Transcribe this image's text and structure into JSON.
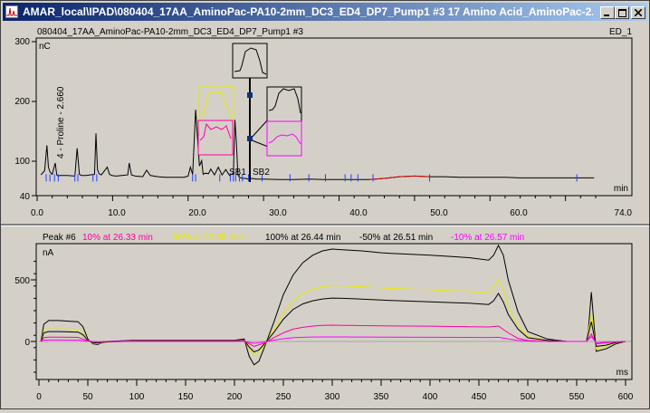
{
  "window": {
    "title": "AMAR_local\\IPAD\\080404_17AA_AminoPac-PA10-2mm_DC3_ED4_DP7_Pump1 #3 17 Amino Acid_AminoPac-2..."
  },
  "top_panel": {
    "sample_title": "080404_17AA_AminoPac-PA10-2mm_DC3_ED4_DP7_Pump1 #3",
    "channel": "ED_1",
    "y_unit": "nC",
    "x_unit": "min",
    "y_ticks": [
      "300",
      "200",
      "100",
      "40"
    ],
    "x_ticks": [
      "0.0",
      "10.0",
      "20.0",
      "30.0",
      "40.0",
      "50.0",
      "60.0",
      "74.0"
    ],
    "peak_label": "4 - Proline - 2.660",
    "sb_label_1": "SB1",
    "sb_label_2": "SB2"
  },
  "bottom_panel": {
    "peak_header": "Peak #6",
    "legend": [
      {
        "text": "10% at 26.33 min",
        "color": "#ff00a0"
      },
      {
        "text": "50% at 26.38 min",
        "color": "#e8e800"
      },
      {
        "text": "100% at 26.44 min",
        "color": "#000000"
      },
      {
        "text": "-50% at 26.51 min",
        "color": "#000000"
      },
      {
        "text": "-10% at 26.57 min",
        "color": "#ff00ff"
      }
    ],
    "y_unit": "nA",
    "x_unit": "ms",
    "y_ticks": [
      "500",
      "0"
    ],
    "x_ticks": [
      "0",
      "50",
      "100",
      "150",
      "200",
      "250",
      "300",
      "350",
      "400",
      "450",
      "500",
      "550",
      "600"
    ]
  },
  "chart_data": [
    {
      "type": "line",
      "x_unit": "min",
      "y_unit": "nC",
      "xlim": [
        0,
        74
      ],
      "ylim": [
        40,
        300
      ],
      "series": [
        {
          "color": "#000000",
          "x": [
            0.5,
            1.0,
            1.3,
            1.5,
            1.7,
            2.0,
            2.4,
            2.6,
            2.8,
            3.0,
            4.0,
            5.0,
            5.3,
            5.6,
            5.9,
            6.5,
            7.0,
            7.6,
            7.8,
            8.0,
            8.2,
            8.5,
            9.3,
            9.6,
            9.9,
            10.5,
            11.2,
            12.0,
            12.2,
            12.5,
            13.0,
            14.0,
            14.5,
            15.0,
            16.0,
            17.0,
            18.0,
            19.5,
            20.0,
            20.3,
            20.6,
            21.0,
            21.5,
            21.8,
            22.0,
            22.3,
            22.7,
            23.0,
            23.5,
            24.0,
            24.5,
            25.0,
            25.5,
            26.0,
            26.2,
            26.4,
            26.6,
            26.8,
            27.0,
            27.3,
            27.6,
            28.0,
            28.5,
            29.0,
            30.0,
            32.0,
            34.0,
            36.0,
            38.0,
            40.0,
            42.0,
            44.0,
            46.0,
            48.0,
            50.0,
            52.0,
            54.0,
            56.0,
            58.0,
            60.0,
            62.0,
            64.0,
            66.0,
            68.0,
            70.0,
            72.0,
            73.8
          ],
          "y": [
            75,
            82,
            125,
            88,
            80,
            76,
            95,
            75,
            73,
            74,
            74,
            73,
            120,
            76,
            74,
            74,
            75,
            76,
            145,
            84,
            77,
            75,
            88,
            76,
            74,
            73,
            74,
            75,
            95,
            75,
            73,
            72,
            83,
            74,
            72,
            71,
            71,
            71,
            73,
            88,
            76,
            185,
            90,
            99,
            76,
            78,
            77,
            85,
            75,
            88,
            75,
            84,
            74,
            78,
            168,
            130,
            75,
            71,
            70,
            69,
            69,
            68,
            69,
            68,
            68,
            67,
            67,
            68,
            67,
            67,
            67,
            67,
            69,
            72,
            73,
            72,
            72,
            71,
            71,
            71,
            71,
            70,
            70,
            70,
            70,
            70,
            70
          ]
        }
      ]
    },
    {
      "type": "line",
      "x_unit": "ms",
      "y_unit": "nA",
      "xlim": [
        0,
        600
      ],
      "ylim": [
        -300,
        800
      ],
      "series": [
        {
          "color": "#000000",
          "x": [
            2,
            5,
            10,
            20,
            30,
            40,
            45,
            50,
            55,
            60,
            65,
            70,
            100,
            150,
            200,
            210,
            215,
            220,
            225,
            230,
            240,
            250,
            260,
            270,
            280,
            290,
            300,
            310,
            320,
            330,
            340,
            350,
            360,
            400,
            440,
            460,
            465,
            470,
            475,
            480,
            490,
            500,
            520,
            540,
            550,
            555,
            560,
            562,
            565,
            570,
            580,
            590,
            600
          ],
          "y": [
            0,
            140,
            170,
            170,
            165,
            160,
            120,
            20,
            -20,
            -25,
            -10,
            0,
            10,
            10,
            10,
            20,
            -120,
            -190,
            -160,
            -60,
            150,
            380,
            540,
            640,
            700,
            735,
            750,
            745,
            740,
            735,
            728,
            720,
            715,
            700,
            680,
            660,
            700,
            780,
            700,
            500,
            240,
            80,
            20,
            0,
            0,
            0,
            0,
            100,
            400,
            -80,
            -60,
            -20,
            0
          ]
        },
        {
          "color": "#e8e800",
          "x": [
            2,
            5,
            10,
            20,
            30,
            40,
            45,
            50,
            55,
            60,
            70,
            100,
            150,
            200,
            210,
            215,
            220,
            225,
            230,
            240,
            250,
            260,
            270,
            280,
            290,
            300,
            310,
            320,
            330,
            340,
            350,
            360,
            400,
            440,
            460,
            465,
            470,
            475,
            480,
            490,
            500,
            520,
            540,
            550,
            555,
            560,
            565,
            570,
            580,
            590,
            600
          ],
          "y": [
            0,
            90,
            100,
            100,
            98,
            95,
            70,
            10,
            -15,
            -18,
            -5,
            5,
            5,
            5,
            10,
            -60,
            -110,
            -95,
            -35,
            90,
            230,
            330,
            390,
            425,
            445,
            455,
            452,
            448,
            444,
            440,
            435,
            430,
            420,
            405,
            395,
            430,
            500,
            420,
            280,
            130,
            40,
            10,
            0,
            0,
            0,
            0,
            220,
            -60,
            -40,
            -10,
            0
          ]
        },
        {
          "color": "#000000",
          "x": [
            2,
            5,
            10,
            20,
            30,
            40,
            45,
            50,
            55,
            60,
            70,
            100,
            150,
            200,
            210,
            215,
            220,
            225,
            230,
            240,
            250,
            260,
            270,
            280,
            290,
            300,
            310,
            320,
            330,
            340,
            350,
            360,
            400,
            440,
            460,
            465,
            470,
            475,
            480,
            490,
            500,
            520,
            540,
            550,
            555,
            560,
            565,
            570,
            580,
            590,
            600
          ],
          "y": [
            0,
            70,
            80,
            80,
            78,
            76,
            55,
            8,
            -10,
            -12,
            -4,
            4,
            4,
            4,
            8,
            -45,
            -85,
            -70,
            -25,
            70,
            180,
            260,
            305,
            330,
            345,
            352,
            350,
            347,
            344,
            340,
            336,
            332,
            322,
            310,
            300,
            330,
            390,
            320,
            220,
            100,
            30,
            8,
            0,
            0,
            0,
            0,
            160,
            -40,
            -30,
            -8,
            0
          ]
        },
        {
          "color": "#ff00a0",
          "x": [
            2,
            5,
            10,
            20,
            40,
            50,
            60,
            70,
            100,
            150,
            200,
            210,
            220,
            230,
            240,
            250,
            260,
            270,
            280,
            290,
            300,
            310,
            320,
            330,
            340,
            350,
            360,
            400,
            440,
            460,
            470,
            480,
            490,
            500,
            520,
            550,
            560,
            565,
            570,
            580,
            600
          ],
          "y": [
            0,
            30,
            35,
            35,
            33,
            5,
            -5,
            0,
            2,
            2,
            2,
            4,
            -40,
            -15,
            30,
            70,
            100,
            115,
            125,
            130,
            132,
            131,
            130,
            129,
            128,
            127,
            126,
            124,
            120,
            118,
            125,
            70,
            25,
            8,
            0,
            0,
            0,
            60,
            -20,
            -10,
            0
          ]
        },
        {
          "color": "#ff00ff",
          "x": [
            2,
            5,
            10,
            20,
            40,
            50,
            60,
            70,
            100,
            150,
            200,
            210,
            220,
            230,
            240,
            250,
            260,
            270,
            280,
            290,
            300,
            310,
            320,
            330,
            340,
            350,
            360,
            400,
            440,
            460,
            470,
            480,
            490,
            500,
            520,
            550,
            560,
            565,
            570,
            580,
            600
          ],
          "y": [
            0,
            10,
            12,
            12,
            11,
            2,
            -3,
            0,
            1,
            1,
            1,
            2,
            -15,
            -6,
            10,
            22,
            30,
            34,
            36,
            37,
            37,
            37,
            36,
            36,
            36,
            35,
            35,
            34,
            33,
            32,
            34,
            20,
            8,
            3,
            0,
            0,
            0,
            40,
            -10,
            -5,
            0
          ]
        }
      ]
    }
  ]
}
